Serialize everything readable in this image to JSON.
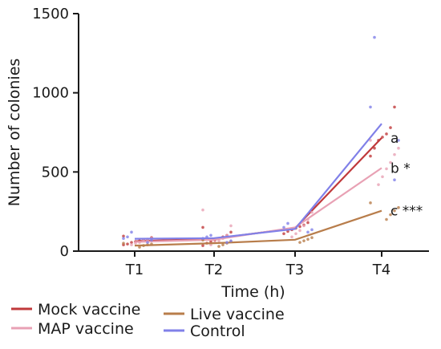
{
  "chart_data": {
    "type": "line",
    "xlabel": "Time (h)",
    "ylabel": "Number of colonies",
    "categories": [
      "T1",
      "T2",
      "T3",
      "T4"
    ],
    "ylim": [
      0,
      1500
    ],
    "yticks": [
      0,
      500,
      1000,
      1500
    ],
    "grid": false,
    "legend_position": "bottom-left",
    "series": [
      {
        "name": "Mock vaccine",
        "color": "#c0393b",
        "values": [
          62,
          78,
          145,
          715
        ],
        "points": [
          [
            40,
            45,
            55,
            60,
            65,
            70,
            75,
            85,
            95
          ],
          [
            35,
            50,
            60,
            70,
            80,
            90,
            100,
            120,
            150
          ],
          [
            110,
            125,
            135,
            145,
            155,
            165,
            180
          ],
          [
            600,
            650,
            700,
            720,
            740,
            780,
            910
          ]
        ]
      },
      {
        "name": "MAP vaccine",
        "color": "#e8a1b4",
        "values": [
          58,
          72,
          150,
          525
        ],
        "points": [
          [
            40,
            50,
            55,
            65,
            70,
            80
          ],
          [
            40,
            55,
            65,
            80,
            100,
            160,
            260
          ],
          [
            90,
            110,
            130,
            160,
            200,
            245
          ],
          [
            420,
            470,
            520,
            560,
            610,
            650,
            700
          ]
        ]
      },
      {
        "name": "Live vaccine",
        "color": "#b87d4b",
        "values": [
          35,
          50,
          72,
          255
        ],
        "points": [
          [
            25,
            35,
            40,
            45,
            50
          ],
          [
            30,
            40,
            50,
            60,
            70
          ],
          [
            55,
            65,
            75,
            85
          ],
          [
            200,
            230,
            255,
            275,
            305
          ]
        ]
      },
      {
        "name": "Control",
        "color": "#8080e8",
        "values": [
          78,
          82,
          140,
          805
        ],
        "points": [
          [
            55,
            70,
            80,
            90,
            120
          ],
          [
            55,
            65,
            80,
            90,
            100
          ],
          [
            120,
            135,
            150,
            175
          ],
          [
            450,
            700,
            910,
            1350
          ]
        ]
      }
    ],
    "annotations": [
      {
        "text": "a",
        "series": "Mock vaccine"
      },
      {
        "text": "b *",
        "series": "MAP vaccine"
      },
      {
        "text": "c ***",
        "series": "Live vaccine"
      }
    ]
  }
}
